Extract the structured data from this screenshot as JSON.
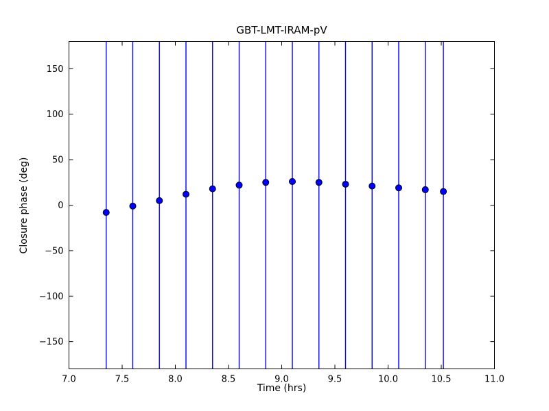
{
  "figure": {
    "background_color": "#ffffff",
    "frame_color": "#000000"
  },
  "chart_data": {
    "type": "scatter",
    "title": "GBT-LMT-IRAM-pV",
    "xlabel": "Time (hrs)",
    "ylabel": "Closure phase (deg)",
    "xlim": [
      7.0,
      11.0
    ],
    "ylim": [
      -180,
      180
    ],
    "x_ticks": [
      7.0,
      7.5,
      8.0,
      8.5,
      9.0,
      9.5,
      10.0,
      10.5,
      11.0
    ],
    "y_ticks": [
      -150,
      -100,
      -50,
      0,
      50,
      100,
      150
    ],
    "grid": false,
    "legend": "none",
    "marker_color": "#0000ff",
    "marker_edge_color": "#000000",
    "errorbar_color": "#0000ff",
    "errorbar_note": "vertical error bars span the full y-axis range, clipped at plot top and bottom",
    "series": [
      {
        "name": "closure phase",
        "x": [
          7.35,
          7.6,
          7.85,
          8.1,
          8.35,
          8.6,
          8.85,
          9.1,
          9.35,
          9.6,
          9.85,
          10.1,
          10.35,
          10.52
        ],
        "y": [
          -8,
          -1,
          5,
          12,
          18,
          22,
          25,
          26,
          25,
          23,
          21,
          19,
          17,
          15
        ]
      }
    ]
  }
}
